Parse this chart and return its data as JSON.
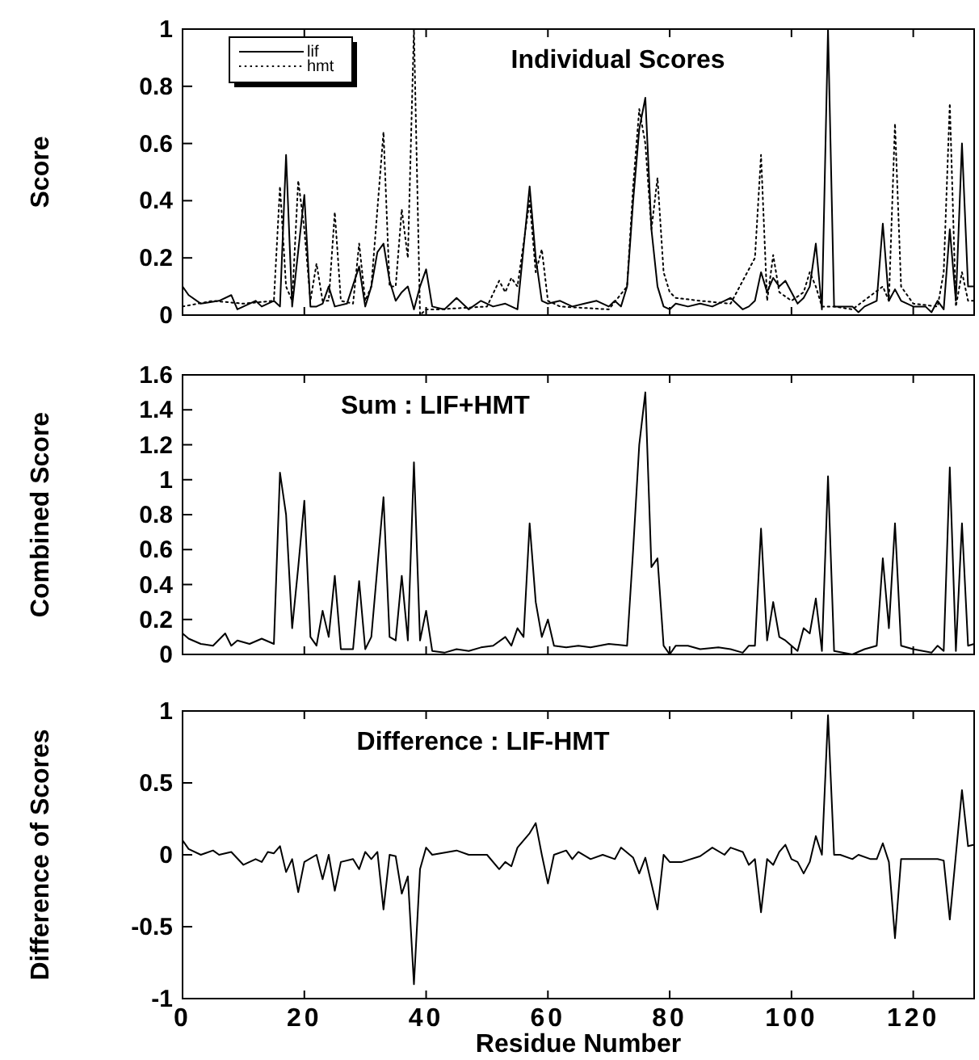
{
  "chart_data": [
    {
      "type": "line",
      "title": "Individual Scores",
      "ylabel": "Score",
      "xlim": [
        0,
        130
      ],
      "xticks": [
        0,
        20,
        40,
        60,
        80,
        100,
        120
      ],
      "ylim": [
        0,
        1
      ],
      "yticks": [
        0,
        0.2,
        0.4,
        0.6,
        0.8,
        1
      ],
      "tick_labels": "y",
      "legend": "top left",
      "series": [
        {
          "name": "lif",
          "color": "#000000",
          "line_style": "solid",
          "x": [
            0,
            1,
            3,
            6,
            8,
            9,
            12,
            13,
            15,
            16,
            17,
            18,
            20,
            21,
            22,
            23,
            24,
            25,
            27,
            29,
            30,
            31,
            32,
            33,
            34,
            35,
            36,
            37,
            38,
            39,
            40,
            41,
            43,
            45,
            47,
            49,
            51,
            53,
            55,
            57,
            58,
            59,
            60,
            62,
            64,
            66,
            68,
            70,
            71,
            72,
            73,
            74,
            75,
            76,
            77,
            78,
            79,
            80,
            81,
            83,
            85,
            87,
            89,
            90,
            92,
            93,
            94,
            95,
            96,
            97,
            98,
            99,
            100,
            101,
            102,
            103,
            104,
            105,
            106,
            107,
            108,
            110,
            111,
            112,
            114,
            115,
            116,
            117,
            118,
            120,
            122,
            123,
            124,
            125,
            126,
            127,
            128,
            129,
            130
          ],
          "values": [
            0.1,
            0.07,
            0.04,
            0.05,
            0.07,
            0.02,
            0.05,
            0.03,
            0.05,
            0.03,
            0.56,
            0.03,
            0.42,
            0.03,
            0.03,
            0.04,
            0.1,
            0.03,
            0.04,
            0.17,
            0.03,
            0.1,
            0.22,
            0.25,
            0.12,
            0.05,
            0.08,
            0.1,
            0.02,
            0.1,
            0.16,
            0.03,
            0.02,
            0.06,
            0.02,
            0.05,
            0.03,
            0.04,
            0.02,
            0.45,
            0.2,
            0.05,
            0.04,
            0.05,
            0.03,
            0.04,
            0.05,
            0.03,
            0.05,
            0.03,
            0.1,
            0.4,
            0.65,
            0.76,
            0.3,
            0.1,
            0.03,
            0.02,
            0.04,
            0.03,
            0.04,
            0.03,
            0.05,
            0.06,
            0.02,
            0.03,
            0.05,
            0.15,
            0.08,
            0.13,
            0.1,
            0.12,
            0.08,
            0.04,
            0.06,
            0.1,
            0.25,
            0.02,
            1,
            0.03,
            0.03,
            0.03,
            0.01,
            0.03,
            0.05,
            0.32,
            0.05,
            0.09,
            0.05,
            0.03,
            0.03,
            0.01,
            0.05,
            0.02,
            0.3,
            0.05,
            0.6,
            0.1,
            0.1
          ]
        },
        {
          "name": "hmt",
          "color": "#000000",
          "line_style": "dotted",
          "x": [
            0,
            5,
            10,
            15,
            16,
            17,
            18,
            19,
            20,
            21,
            22,
            23,
            24,
            25,
            26,
            28,
            29,
            30,
            31,
            33,
            34,
            35,
            36,
            37,
            38,
            39,
            40,
            42,
            50,
            52,
            53,
            54,
            55,
            56,
            57,
            58,
            59,
            60,
            62,
            70,
            73,
            74,
            75,
            76,
            77,
            78,
            79,
            80,
            81,
            85,
            90,
            94,
            95,
            96,
            97,
            98,
            100,
            102,
            103,
            104,
            105,
            106,
            107,
            110,
            115,
            116,
            117,
            118,
            120,
            124,
            125,
            126,
            127,
            128,
            129,
            130
          ],
          "values": [
            0.03,
            0.05,
            0.04,
            0.05,
            0.45,
            0.1,
            0.05,
            0.47,
            0.3,
            0.05,
            0.18,
            0.05,
            0.05,
            0.36,
            0.05,
            0.04,
            0.25,
            0.05,
            0.1,
            0.64,
            0.1,
            0.1,
            0.37,
            0.2,
            1,
            0,
            0.02,
            0.02,
            0.03,
            0.12,
            0.08,
            0.13,
            0.1,
            0.25,
            0.4,
            0.15,
            0.23,
            0.05,
            0.03,
            0.02,
            0.1,
            0.45,
            0.72,
            0.6,
            0.3,
            0.48,
            0.15,
            0.08,
            0.06,
            0.05,
            0.04,
            0.2,
            0.56,
            0.05,
            0.21,
            0.08,
            0.05,
            0.08,
            0.15,
            0.1,
            0.03,
            0.03,
            0.03,
            0.02,
            0.1,
            0.05,
            0.67,
            0.1,
            0.04,
            0.03,
            0.15,
            0.74,
            0.03,
            0.15,
            0.05,
            0.05
          ]
        }
      ]
    },
    {
      "type": "line",
      "title": "Sum : LIF+HMT",
      "ylabel": "Combined Score",
      "xlim": [
        0,
        130
      ],
      "xticks": [
        0,
        20,
        40,
        60,
        80,
        100,
        120
      ],
      "ylim": [
        0,
        1.6
      ],
      "yticks": [
        0,
        0.2,
        0.4,
        0.6,
        0.8,
        1,
        1.2,
        1.4,
        1.6
      ],
      "tick_labels": "y",
      "series": [
        {
          "color": "#000000",
          "line_style": "solid",
          "x": [
            0,
            1,
            3,
            5,
            7,
            8,
            9,
            11,
            13,
            15,
            16,
            17,
            18,
            19,
            20,
            21,
            22,
            23,
            24,
            25,
            26,
            28,
            29,
            30,
            31,
            33,
            34,
            35,
            36,
            37,
            38,
            39,
            40,
            41,
            43,
            45,
            47,
            49,
            51,
            53,
            54,
            55,
            56,
            57,
            58,
            59,
            60,
            61,
            63,
            65,
            67,
            70,
            73,
            74,
            75,
            76,
            77,
            78,
            79,
            80,
            81,
            83,
            85,
            88,
            90,
            92,
            93,
            94,
            95,
            96,
            97,
            98,
            99,
            101,
            102,
            103,
            104,
            105,
            106,
            107,
            110,
            112,
            114,
            115,
            116,
            117,
            118,
            120,
            123,
            124,
            125,
            126,
            127,
            128,
            129,
            130
          ],
          "values": [
            0.12,
            0.09,
            0.06,
            0.05,
            0.12,
            0.05,
            0.08,
            0.06,
            0.09,
            0.06,
            1.04,
            0.8,
            0.15,
            0.5,
            0.88,
            0.1,
            0.05,
            0.25,
            0.1,
            0.45,
            0.03,
            0.03,
            0.42,
            0.03,
            0.1,
            0.9,
            0.1,
            0.08,
            0.45,
            0.08,
            1.1,
            0.08,
            0.25,
            0.02,
            0.01,
            0.03,
            0.02,
            0.04,
            0.05,
            0.1,
            0.05,
            0.15,
            0.1,
            0.75,
            0.3,
            0.1,
            0.2,
            0.05,
            0.04,
            0.05,
            0.04,
            0.06,
            0.05,
            0.6,
            1.2,
            1.5,
            0.5,
            0.55,
            0.05,
            0,
            0.05,
            0.05,
            0.03,
            0.04,
            0.03,
            0.01,
            0.05,
            0.05,
            0.72,
            0.08,
            0.3,
            0.1,
            0.08,
            0.02,
            0.15,
            0.12,
            0.32,
            0.02,
            1.02,
            0.02,
            0,
            0.03,
            0.05,
            0.55,
            0.15,
            0.75,
            0.05,
            0.03,
            0.01,
            0.05,
            0.02,
            1.07,
            0.02,
            0.75,
            0.05,
            0.06
          ]
        }
      ]
    },
    {
      "type": "line",
      "title": "Difference : LIF-HMT",
      "xlabel": "Residue Number",
      "ylabel": "Difference of Scores",
      "xlim": [
        0,
        130
      ],
      "xticks": [
        0,
        20,
        40,
        60,
        80,
        100,
        120
      ],
      "ylim": [
        -1,
        1
      ],
      "yticks": [
        -1,
        -0.5,
        0,
        0.5,
        1
      ],
      "series": [
        {
          "color": "#000000",
          "line_style": "solid",
          "x": [
            0,
            1,
            3,
            5,
            6,
            8,
            10,
            12,
            13,
            14,
            15,
            16,
            17,
            18,
            19,
            20,
            22,
            23,
            24,
            25,
            26,
            28,
            29,
            30,
            31,
            32,
            33,
            34,
            35,
            36,
            37,
            38,
            39,
            40,
            41,
            45,
            47,
            50,
            52,
            53,
            54,
            55,
            57,
            58,
            59,
            60,
            61,
            63,
            64,
            65,
            67,
            69,
            71,
            72,
            74,
            75,
            76,
            78,
            79,
            80,
            82,
            85,
            87,
            89,
            90,
            92,
            93,
            94,
            95,
            96,
            97,
            98,
            99,
            100,
            101,
            102,
            103,
            104,
            105,
            106,
            107,
            108,
            110,
            111,
            113,
            114,
            115,
            116,
            117,
            118,
            120,
            124,
            125,
            126,
            127,
            128,
            129,
            130
          ],
          "values": [
            0.1,
            0.04,
            0,
            0.03,
            0,
            0.02,
            -0.07,
            -0.03,
            -0.05,
            0.02,
            0.01,
            0.06,
            -0.12,
            -0.03,
            -0.26,
            -0.05,
            0,
            -0.17,
            0,
            -0.25,
            -0.05,
            -0.03,
            -0.1,
            0.02,
            -0.03,
            0.02,
            -0.38,
            0,
            -0.01,
            -0.27,
            -0.15,
            -0.9,
            -0.1,
            0.05,
            0,
            0.03,
            0,
            0,
            -0.1,
            -0.05,
            -0.08,
            0.05,
            0.15,
            0.22,
            0,
            -0.2,
            0,
            0.03,
            -0.03,
            0.02,
            -0.03,
            0,
            -0.03,
            0.05,
            -0.02,
            -0.13,
            -0.02,
            -0.38,
            0,
            -0.05,
            -0.05,
            -0.01,
            0.05,
            0,
            0.05,
            0.02,
            -0.07,
            -0.03,
            -0.4,
            -0.03,
            -0.07,
            0.02,
            0.07,
            -0.03,
            -0.05,
            -0.13,
            -0.05,
            0.13,
            0,
            0.97,
            0,
            0,
            -0.03,
            0,
            -0.03,
            -0.03,
            0.08,
            -0.05,
            -0.58,
            -0.03,
            -0.03,
            -0.03,
            -0.04,
            -0.45,
            0,
            0.45,
            0.06,
            0.07
          ]
        }
      ]
    }
  ]
}
